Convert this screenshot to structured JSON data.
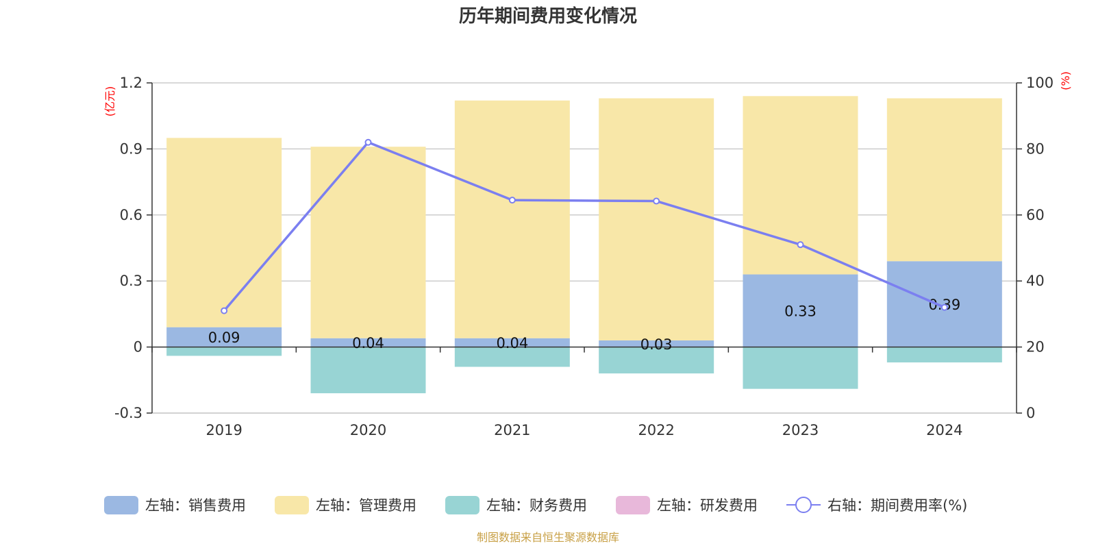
{
  "chart_data": {
    "type": "bar",
    "title": "历年期间费用变化情况",
    "categories": [
      "2019",
      "2020",
      "2021",
      "2022",
      "2023",
      "2024"
    ],
    "left_axis": {
      "unit": "(亿元)",
      "range": [
        -0.3,
        1.2
      ],
      "ticks": [
        "1.2",
        "0.9",
        "0.6",
        "0.3",
        "0",
        "-0.3"
      ]
    },
    "right_axis": {
      "unit": "(%)",
      "range": [
        0,
        100
      ],
      "ticks": [
        "100",
        "80",
        "60",
        "40",
        "20",
        "0"
      ]
    },
    "series": [
      {
        "name": "左轴：销售费用",
        "axis": "left",
        "stacked": true,
        "color": "#9bb8e2",
        "values": [
          0.09,
          0.04,
          0.04,
          0.03,
          0.33,
          0.39
        ],
        "labels": [
          "0.09",
          "0.04",
          "0.04",
          "0.03",
          "0.33",
          "0.39"
        ]
      },
      {
        "name": "左轴：管理费用",
        "axis": "left",
        "stacked": true,
        "color": "#f8e7a8",
        "values": [
          0.86,
          0.87,
          1.08,
          1.1,
          0.81,
          0.74
        ]
      },
      {
        "name": "左轴：财务费用",
        "axis": "left",
        "stacked": true,
        "color": "#98d4d4",
        "values": [
          -0.04,
          -0.21,
          -0.09,
          -0.12,
          -0.19,
          -0.07
        ]
      },
      {
        "name": "左轴：研发费用",
        "axis": "left",
        "stacked": true,
        "color": "#e8b8da",
        "values": [
          0,
          0,
          0,
          0,
          0,
          0
        ]
      },
      {
        "name": "右轴：期间费用率(%)",
        "axis": "right",
        "type": "line",
        "color": "#7b7ff0",
        "values": [
          31.0,
          82.0,
          64.5,
          64.2,
          51.0,
          32.0
        ]
      }
    ]
  },
  "source": "制图数据来自恒生聚源数据库"
}
